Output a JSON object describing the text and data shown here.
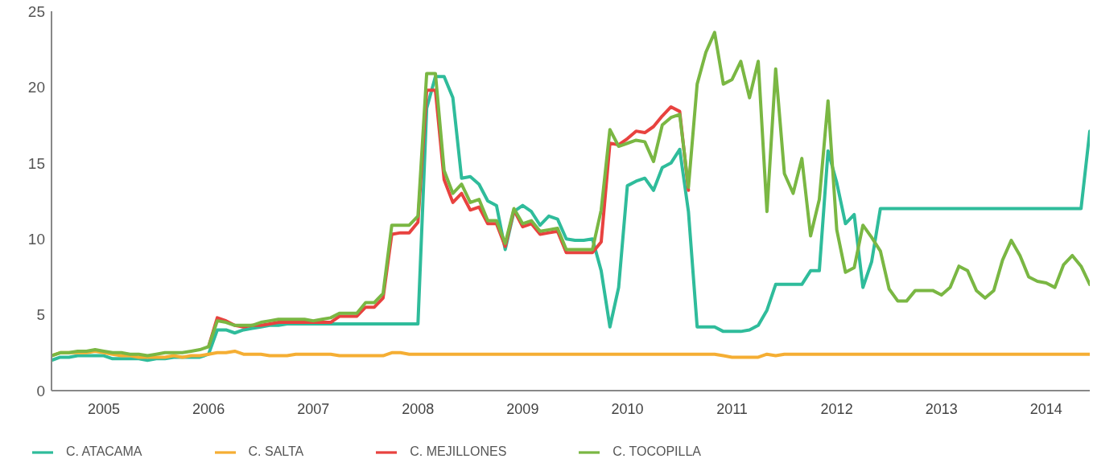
{
  "chart_data": {
    "type": "line",
    "x": [
      "2005-01",
      "2005-02",
      "2005-03",
      "2005-04",
      "2005-05",
      "2005-06",
      "2005-07",
      "2005-08",
      "2005-09",
      "2005-10",
      "2005-11",
      "2005-12",
      "2006-01",
      "2006-02",
      "2006-03",
      "2006-04",
      "2006-05",
      "2006-06",
      "2006-07",
      "2006-08",
      "2006-09",
      "2006-10",
      "2006-11",
      "2006-12",
      "2007-01",
      "2007-02",
      "2007-03",
      "2007-04",
      "2007-05",
      "2007-06",
      "2007-07",
      "2007-08",
      "2007-09",
      "2007-10",
      "2007-11",
      "2007-12",
      "2008-01",
      "2008-02",
      "2008-03",
      "2008-04",
      "2008-05",
      "2008-06",
      "2008-07",
      "2008-08",
      "2008-09",
      "2008-10",
      "2008-11",
      "2008-12",
      "2009-01",
      "2009-02",
      "2009-03",
      "2009-04",
      "2009-05",
      "2009-06",
      "2009-07",
      "2009-08",
      "2009-09",
      "2009-10",
      "2009-11",
      "2009-12",
      "2010-01",
      "2010-02",
      "2010-03",
      "2010-04",
      "2010-05",
      "2010-06",
      "2010-07",
      "2010-08",
      "2010-09",
      "2010-10",
      "2010-11",
      "2010-12",
      "2011-01",
      "2011-02",
      "2011-03",
      "2011-04",
      "2011-05",
      "2011-06",
      "2011-07",
      "2011-08",
      "2011-09",
      "2011-10",
      "2011-11",
      "2011-12",
      "2012-01",
      "2012-02",
      "2012-03",
      "2012-04",
      "2012-05",
      "2012-06",
      "2012-07",
      "2012-08",
      "2012-09",
      "2012-10",
      "2012-11",
      "2012-12",
      "2013-01",
      "2013-02",
      "2013-03",
      "2013-04",
      "2013-05",
      "2013-06",
      "2013-07",
      "2013-08",
      "2013-09",
      "2013-10",
      "2013-11",
      "2013-12",
      "2014-01",
      "2014-02",
      "2014-03",
      "2014-04",
      "2014-05",
      "2014-06",
      "2014-07",
      "2014-08",
      "2014-09",
      "2014-10",
      "2014-11",
      "2014-12"
    ],
    "series": [
      {
        "name": "C. ATACAMA",
        "color": "#2fbc9b",
        "values": [
          2.0,
          2.2,
          2.2,
          2.3,
          2.3,
          2.3,
          2.3,
          2.1,
          2.1,
          2.1,
          2.1,
          2.0,
          2.1,
          2.1,
          2.2,
          2.2,
          2.2,
          2.2,
          2.4,
          4.0,
          4.0,
          3.8,
          4.0,
          4.1,
          4.2,
          4.3,
          4.3,
          4.4,
          4.4,
          4.4,
          4.4,
          4.4,
          4.4,
          4.4,
          4.4,
          4.4,
          4.4,
          4.4,
          4.4,
          4.4,
          4.4,
          4.4,
          4.4,
          18.6,
          20.7,
          20.7,
          19.3,
          14.0,
          14.1,
          13.6,
          12.5,
          12.2,
          9.3,
          11.8,
          12.2,
          11.8,
          10.9,
          11.5,
          11.3,
          10.0,
          9.9,
          9.9,
          10.0,
          7.9,
          4.2,
          6.8,
          13.5,
          13.8,
          14.0,
          13.2,
          14.7,
          15.0,
          15.9,
          11.8,
          4.2,
          4.2,
          4.2,
          3.9,
          3.9,
          3.9,
          4.0,
          4.3,
          5.3,
          7.0,
          7.0,
          7.0,
          7.0,
          7.9,
          7.9,
          15.8,
          13.7,
          11.0,
          11.6,
          6.8,
          8.5,
          12.0,
          12.0,
          12.0,
          12.0,
          12.0,
          12.0,
          12.0,
          12.0,
          12.0,
          12.0,
          12.0,
          12.0,
          12.0,
          12.0,
          12.0,
          12.0,
          12.0,
          12.0,
          12.0,
          12.0,
          12.0,
          12.0,
          12.0,
          12.0,
          17.1
        ]
      },
      {
        "name": "C. SALTA",
        "color": "#f5ae33",
        "values": [
          2.3,
          2.5,
          2.5,
          2.5,
          2.5,
          2.6,
          2.5,
          2.4,
          2.3,
          2.3,
          2.2,
          2.2,
          2.2,
          2.2,
          2.3,
          2.2,
          2.3,
          2.3,
          2.4,
          2.5,
          2.5,
          2.6,
          2.4,
          2.4,
          2.4,
          2.3,
          2.3,
          2.3,
          2.4,
          2.4,
          2.4,
          2.4,
          2.4,
          2.3,
          2.3,
          2.3,
          2.3,
          2.3,
          2.3,
          2.5,
          2.5,
          2.4,
          2.4,
          2.4,
          2.4,
          2.4,
          2.4,
          2.4,
          2.4,
          2.4,
          2.4,
          2.4,
          2.4,
          2.4,
          2.4,
          2.4,
          2.4,
          2.4,
          2.4,
          2.4,
          2.4,
          2.4,
          2.4,
          2.4,
          2.4,
          2.4,
          2.4,
          2.4,
          2.4,
          2.4,
          2.4,
          2.4,
          2.4,
          2.4,
          2.4,
          2.4,
          2.4,
          2.3,
          2.2,
          2.2,
          2.2,
          2.2,
          2.4,
          2.3,
          2.4,
          2.4,
          2.4,
          2.4,
          2.4,
          2.4,
          2.4,
          2.4,
          2.4,
          2.4,
          2.4,
          2.4,
          2.4,
          2.4,
          2.4,
          2.4,
          2.4,
          2.4,
          2.4,
          2.4,
          2.4,
          2.4,
          2.4,
          2.4,
          2.4,
          2.4,
          2.4,
          2.4,
          2.4,
          2.4,
          2.4,
          2.4,
          2.4,
          2.4,
          2.4,
          2.4
        ]
      },
      {
        "name": "C. MEJILLONES",
        "color": "#e8423f",
        "values": [
          null,
          null,
          null,
          null,
          null,
          null,
          null,
          null,
          null,
          null,
          null,
          null,
          null,
          null,
          null,
          null,
          null,
          null,
          2.9,
          4.8,
          4.6,
          4.3,
          4.2,
          4.3,
          4.3,
          4.4,
          4.5,
          4.5,
          4.5,
          4.5,
          4.5,
          4.5,
          4.5,
          4.9,
          4.9,
          4.9,
          5.5,
          5.5,
          6.1,
          10.3,
          10.4,
          10.4,
          11.1,
          19.8,
          19.8,
          13.9,
          12.4,
          13.0,
          11.9,
          12.1,
          11.0,
          11.0,
          9.5,
          11.9,
          10.8,
          11.0,
          10.3,
          10.4,
          10.5,
          9.1,
          9.1,
          9.1,
          9.1,
          9.8,
          16.3,
          16.2,
          16.6,
          17.1,
          17.0,
          17.4,
          18.1,
          18.7,
          18.4,
          13.2,
          null,
          null,
          null,
          null,
          null,
          null,
          null,
          null,
          null,
          null,
          null,
          null,
          null,
          null,
          null,
          null,
          null,
          null,
          null,
          null,
          null,
          null,
          null,
          null,
          null,
          null,
          null,
          null,
          null,
          null,
          null,
          null,
          null,
          null,
          null,
          null,
          null,
          null,
          null,
          null,
          null,
          null,
          null,
          null,
          null,
          null
        ]
      },
      {
        "name": "C. TOCOPILLA",
        "color": "#7ab743",
        "values": [
          2.3,
          2.5,
          2.5,
          2.6,
          2.6,
          2.7,
          2.6,
          2.5,
          2.5,
          2.4,
          2.4,
          2.3,
          2.4,
          2.5,
          2.5,
          2.5,
          2.6,
          2.7,
          2.9,
          4.6,
          4.5,
          4.3,
          4.3,
          4.3,
          4.5,
          4.6,
          4.7,
          4.7,
          4.7,
          4.7,
          4.6,
          4.7,
          4.8,
          5.1,
          5.1,
          5.1,
          5.8,
          5.8,
          6.4,
          10.9,
          10.9,
          10.9,
          11.5,
          20.9,
          20.9,
          14.5,
          13.0,
          13.6,
          12.4,
          12.6,
          11.2,
          11.2,
          9.7,
          12.0,
          11.0,
          11.2,
          10.5,
          10.6,
          10.7,
          9.3,
          9.3,
          9.3,
          9.3,
          11.9,
          17.2,
          16.1,
          16.3,
          16.5,
          16.4,
          15.1,
          17.5,
          18.0,
          18.2,
          13.4,
          20.2,
          22.3,
          23.6,
          20.2,
          20.5,
          21.7,
          19.3,
          21.7,
          11.8,
          21.2,
          14.3,
          13.0,
          15.3,
          10.2,
          12.6,
          19.1,
          10.6,
          7.8,
          8.1,
          10.9,
          10.1,
          9.2,
          6.7,
          5.9,
          5.9,
          6.6,
          6.6,
          6.6,
          6.3,
          6.8,
          8.2,
          7.9,
          6.6,
          6.1,
          6.6,
          8.6,
          9.9,
          8.9,
          7.5,
          7.2,
          7.1,
          6.8,
          8.3,
          8.9,
          8.2,
          7.0
        ]
      }
    ],
    "xlim": [
      "2005-01",
      "2014-12"
    ],
    "xticks": [
      {
        "value": "2005-07",
        "label": "2005"
      },
      {
        "value": "2006-07",
        "label": "2006"
      },
      {
        "value": "2007-07",
        "label": "2007"
      },
      {
        "value": "2008-07",
        "label": "2008"
      },
      {
        "value": "2009-07",
        "label": "2009"
      },
      {
        "value": "2010-07",
        "label": "2010"
      },
      {
        "value": "2011-07",
        "label": "2011"
      },
      {
        "value": "2012-07",
        "label": "2012"
      },
      {
        "value": "2013-07",
        "label": "2013"
      },
      {
        "value": "2014-07",
        "label": "2014"
      }
    ],
    "ylim": [
      0,
      25
    ],
    "yticks": [
      0,
      5,
      10,
      15,
      20,
      25
    ],
    "grid": false,
    "legend": "bottom left",
    "marker": "none",
    "line_style": "solid"
  }
}
